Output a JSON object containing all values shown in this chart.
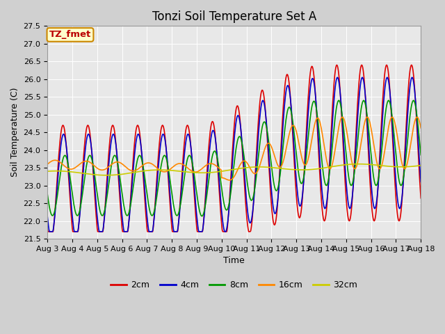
{
  "title": "Tonzi Soil Temperature Set A",
  "xlabel": "Time",
  "ylabel": "Soil Temperature (C)",
  "annotation_text": "TZ_fmet",
  "annotation_bg": "#ffffcc",
  "annotation_border": "#cc8800",
  "annotation_text_color": "#bb0000",
  "ylim": [
    21.5,
    27.5
  ],
  "yticks": [
    21.5,
    22.0,
    22.5,
    23.0,
    23.5,
    24.0,
    24.5,
    25.0,
    25.5,
    26.0,
    26.5,
    27.0,
    27.5
  ],
  "xtick_labels": [
    "Aug 3",
    "Aug 4",
    "Aug 5",
    "Aug 6",
    "Aug 7",
    "Aug 8",
    "Aug 9",
    "Aug 10",
    "Aug 11",
    "Aug 12",
    "Aug 13",
    "Aug 14",
    "Aug 15",
    "Aug 16",
    "Aug 17",
    "Aug 18"
  ],
  "series_colors": [
    "#dd0000",
    "#0000cc",
    "#009900",
    "#ff8800",
    "#cccc00"
  ],
  "series_labels": [
    "2cm",
    "4cm",
    "8cm",
    "16cm",
    "32cm"
  ],
  "series_linewidths": [
    1.2,
    1.2,
    1.2,
    1.2,
    1.2
  ],
  "bg_color": "#e8e8e8",
  "fig_bg": "#d0d0d0",
  "grid_color": "#ffffff",
  "title_fontsize": 12,
  "axis_fontsize": 9,
  "tick_fontsize": 8
}
